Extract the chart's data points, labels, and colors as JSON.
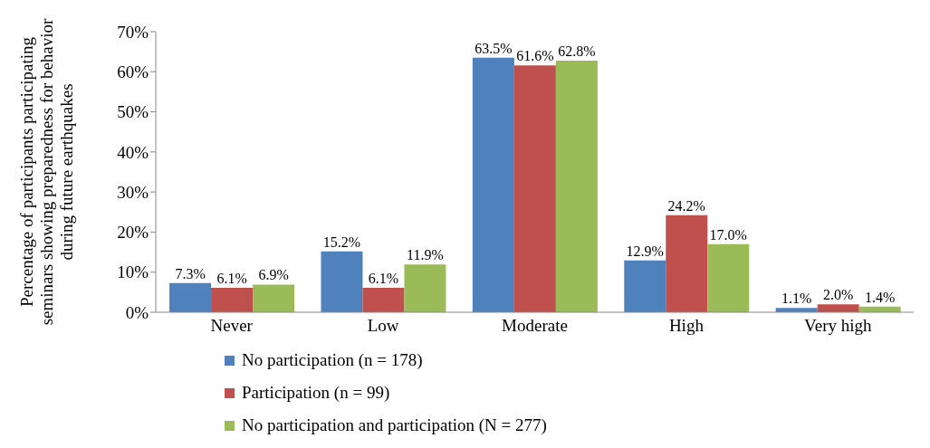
{
  "chart_data": {
    "type": "bar",
    "ylabel": "Percentage of participants participating seminars showing preparedness for behavior during future earthquakes",
    "categories": [
      "Never",
      "Low",
      "Moderate",
      "High",
      "Very high"
    ],
    "series": [
      {
        "name": "No participation (n = 178)",
        "color": "#4f81bd",
        "values": [
          7.3,
          15.2,
          63.5,
          12.9,
          1.1
        ],
        "value_labels": [
          "7.3%",
          "15.2%",
          "63.5%",
          "12.9%",
          "1.1%"
        ]
      },
      {
        "name": "Participation  (n = 99)",
        "color": "#c0504d",
        "values": [
          6.1,
          6.1,
          61.6,
          24.2,
          2.0
        ],
        "value_labels": [
          "6.1%",
          "6.1%",
          "61.6%",
          "24.2%",
          "2.0%"
        ]
      },
      {
        "name": "No participation and participation  (N = 277)",
        "color": "#9bbb59",
        "values": [
          6.9,
          11.9,
          62.8,
          17.0,
          1.4
        ],
        "value_labels": [
          "6.9%",
          "11.9%",
          "62.8%",
          "17.0%",
          "1.4%"
        ]
      }
    ],
    "ylim": [
      0,
      70
    ],
    "yticks": [
      {
        "value": 0,
        "label": "0%"
      },
      {
        "value": 10,
        "label": "10%"
      },
      {
        "value": 20,
        "label": "20%"
      },
      {
        "value": 30,
        "label": "30%"
      },
      {
        "value": 40,
        "label": "40%"
      },
      {
        "value": 50,
        "label": "50%"
      },
      {
        "value": 60,
        "label": "60%"
      },
      {
        "value": 70,
        "label": "70%"
      }
    ],
    "grid": false,
    "legend": "bottom"
  }
}
